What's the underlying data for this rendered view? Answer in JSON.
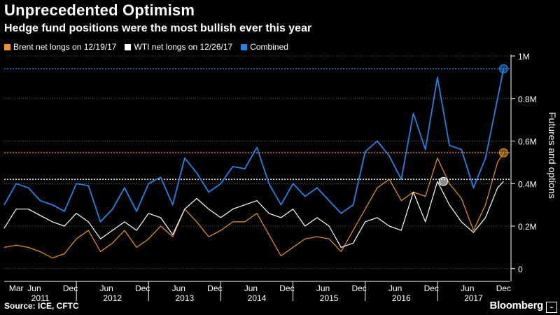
{
  "title": "Unprecedented Optimism",
  "subtitle": "Hedge fund positions were the most bullish ever this year",
  "legend": [
    {
      "label": "Brent net longs on 12/19/17",
      "color": "#e9962b"
    },
    {
      "label": "WTI net longs on 12/26/17",
      "color": "#ffffff"
    },
    {
      "label": "Combined",
      "color": "#2b7fe0"
    }
  ],
  "source": "Source: ICE, CFTC",
  "brand": "Bloomberg",
  "chart_data": {
    "type": "line",
    "ylabel": "Futures and options",
    "ylim": [
      -0.06,
      1.0
    ],
    "yticks": [
      0,
      0.2,
      0.4,
      0.6,
      0.8,
      1.0
    ],
    "ytick_labels": [
      "0",
      "0.2M",
      "0.4M",
      "0.6M",
      "0.8M",
      "1M"
    ],
    "x_start": "2011-03",
    "x_end": "2017-12",
    "month_ticks": [
      "Mar",
      "Jun",
      "Dec",
      "Jun",
      "Dec",
      "Jun",
      "Dec",
      "Jun",
      "Dec",
      "Jun",
      "Dec",
      "Jun",
      "Dec",
      "Jun",
      "Dec"
    ],
    "month_tick_dates": [
      "2011-03",
      "2011-06",
      "2011-12",
      "2012-06",
      "2012-12",
      "2013-06",
      "2013-12",
      "2014-06",
      "2014-12",
      "2015-06",
      "2015-12",
      "2016-06",
      "2016-12",
      "2017-06",
      "2017-12"
    ],
    "year_labels": [
      "2011",
      "2012",
      "2013",
      "2014",
      "2015",
      "2016",
      "2017"
    ],
    "reference_lines": [
      {
        "series": "Combined",
        "value": 0.94,
        "color": "#2b7fe0"
      },
      {
        "series": "Brent net longs on 12/19/17",
        "value": 0.545,
        "color": "#e9962b"
      },
      {
        "series": "WTI net longs on 12/26/17",
        "value": 0.42,
        "color": "#ffffff"
      }
    ],
    "markers": [
      {
        "series": "Combined",
        "x": "2017-12",
        "y": 0.94
      },
      {
        "series": "Brent net longs on 12/19/17",
        "x": "2017-12",
        "y": 0.545
      },
      {
        "series": "WTI net longs on 12/26/17",
        "x": "2017-02",
        "y": 0.41
      }
    ],
    "series": [
      {
        "name": "Combined",
        "color": "#2b7fe0",
        "x": [
          "2011-01",
          "2011-03",
          "2011-05",
          "2011-07",
          "2011-09",
          "2011-11",
          "2012-01",
          "2012-03",
          "2012-05",
          "2012-07",
          "2012-09",
          "2012-11",
          "2013-01",
          "2013-03",
          "2013-05",
          "2013-07",
          "2013-09",
          "2013-11",
          "2014-01",
          "2014-03",
          "2014-05",
          "2014-07",
          "2014-09",
          "2014-11",
          "2015-01",
          "2015-03",
          "2015-05",
          "2015-07",
          "2015-09",
          "2015-11",
          "2016-01",
          "2016-03",
          "2016-05",
          "2016-07",
          "2016-09",
          "2016-11",
          "2017-01",
          "2017-03",
          "2017-05",
          "2017-07",
          "2017-09",
          "2017-11",
          "2017-12"
        ],
        "values": [
          0.3,
          0.4,
          0.38,
          0.32,
          0.3,
          0.27,
          0.4,
          0.39,
          0.22,
          0.28,
          0.38,
          0.27,
          0.4,
          0.43,
          0.3,
          0.52,
          0.45,
          0.36,
          0.4,
          0.48,
          0.47,
          0.57,
          0.4,
          0.3,
          0.4,
          0.34,
          0.38,
          0.32,
          0.26,
          0.3,
          0.55,
          0.6,
          0.53,
          0.42,
          0.73,
          0.56,
          0.9,
          0.58,
          0.56,
          0.38,
          0.52,
          0.8,
          0.94
        ]
      },
      {
        "name": "Brent net longs on 12/19/17",
        "color": "#e9962b",
        "x": [
          "2011-01",
          "2011-03",
          "2011-05",
          "2011-07",
          "2011-09",
          "2011-11",
          "2012-01",
          "2012-03",
          "2012-05",
          "2012-07",
          "2012-09",
          "2012-11",
          "2013-01",
          "2013-03",
          "2013-05",
          "2013-07",
          "2013-09",
          "2013-11",
          "2014-01",
          "2014-03",
          "2014-05",
          "2014-07",
          "2014-09",
          "2014-11",
          "2015-01",
          "2015-03",
          "2015-05",
          "2015-07",
          "2015-09",
          "2015-11",
          "2016-01",
          "2016-03",
          "2016-05",
          "2016-07",
          "2016-09",
          "2016-11",
          "2017-01",
          "2017-03",
          "2017-05",
          "2017-07",
          "2017-09",
          "2017-11",
          "2017-12"
        ],
        "values": [
          0.1,
          0.11,
          0.1,
          0.08,
          0.05,
          0.07,
          0.14,
          0.18,
          0.08,
          0.12,
          0.18,
          0.1,
          0.14,
          0.2,
          0.15,
          0.28,
          0.22,
          0.15,
          0.18,
          0.22,
          0.22,
          0.26,
          0.16,
          0.06,
          0.1,
          0.14,
          0.15,
          0.14,
          0.08,
          0.18,
          0.28,
          0.38,
          0.42,
          0.32,
          0.36,
          0.34,
          0.52,
          0.4,
          0.33,
          0.18,
          0.3,
          0.5,
          0.545
        ]
      },
      {
        "name": "WTI net longs on 12/26/17",
        "color": "#ffffff",
        "x": [
          "2011-01",
          "2011-03",
          "2011-05",
          "2011-07",
          "2011-09",
          "2011-11",
          "2012-01",
          "2012-03",
          "2012-05",
          "2012-07",
          "2012-09",
          "2012-11",
          "2013-01",
          "2013-03",
          "2013-05",
          "2013-07",
          "2013-09",
          "2013-11",
          "2014-01",
          "2014-03",
          "2014-05",
          "2014-07",
          "2014-09",
          "2014-11",
          "2015-01",
          "2015-03",
          "2015-05",
          "2015-07",
          "2015-09",
          "2015-11",
          "2016-01",
          "2016-03",
          "2016-05",
          "2016-07",
          "2016-09",
          "2016-11",
          "2017-01",
          "2017-03",
          "2017-05",
          "2017-07",
          "2017-09",
          "2017-11",
          "2017-12"
        ],
        "values": [
          0.19,
          0.28,
          0.28,
          0.25,
          0.22,
          0.2,
          0.26,
          0.22,
          0.14,
          0.18,
          0.22,
          0.18,
          0.26,
          0.24,
          0.16,
          0.28,
          0.33,
          0.28,
          0.24,
          0.28,
          0.3,
          0.32,
          0.26,
          0.24,
          0.28,
          0.2,
          0.24,
          0.2,
          0.1,
          0.12,
          0.22,
          0.24,
          0.2,
          0.18,
          0.36,
          0.22,
          0.41,
          0.3,
          0.22,
          0.17,
          0.24,
          0.38,
          0.41
        ]
      }
    ]
  }
}
